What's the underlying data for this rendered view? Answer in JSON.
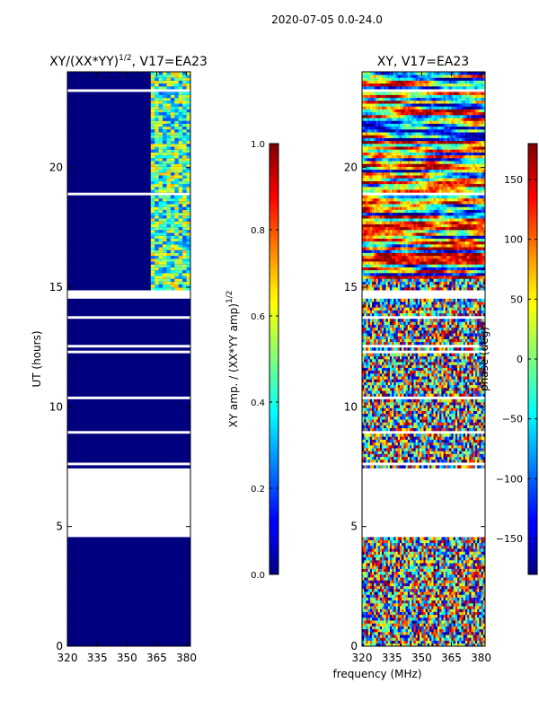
{
  "figure_title": "2020-07-05 0.0-24.0",
  "shared_xlabel": "frequency (MHz)",
  "chart_data": [
    {
      "type": "heatmap",
      "title_main": "XY/(XX*YY)",
      "title_sup": "1/2",
      "title_tail": ", V17=EA23",
      "xlabel": "",
      "ylabel": "UT (hours)",
      "xlim": [
        320,
        382
      ],
      "ylim": [
        0,
        24
      ],
      "xticks": [
        {
          "value": 320,
          "label": "320"
        },
        {
          "value": 335,
          "label": "335"
        },
        {
          "value": 350,
          "label": "350"
        },
        {
          "value": 365,
          "label": "365"
        },
        {
          "value": 380,
          "label": "380"
        }
      ],
      "yticks": [
        {
          "value": 0,
          "label": "0"
        },
        {
          "value": 5,
          "label": "5"
        },
        {
          "value": 10,
          "label": "10"
        },
        {
          "value": 15,
          "label": "15"
        },
        {
          "value": 20,
          "label": "20"
        }
      ],
      "colormap": "jet",
      "colorbar": {
        "label_main": "XY amp. / (XX*YY amp)",
        "label_sup": "1/2",
        "range": [
          0.0,
          1.0
        ],
        "ticks": [
          {
            "value": 0.0,
            "label": "0.0"
          },
          {
            "value": 0.2,
            "label": "0.2"
          },
          {
            "value": 0.4,
            "label": "0.4"
          },
          {
            "value": 0.6,
            "label": "0.6"
          },
          {
            "value": 0.8,
            "label": "0.8"
          },
          {
            "value": 1.0,
            "label": "1.0"
          }
        ]
      },
      "data_ranges_hours": [
        [
          0.0,
          4.6
        ],
        [
          7.4,
          14.5
        ],
        [
          14.9,
          23.95
        ]
      ],
      "signal_band_mhz": [
        362,
        382
      ],
      "signal_start_hour": 14.8
    },
    {
      "type": "heatmap",
      "title": "XY, V17=EA23",
      "xlabel": "",
      "ylabel": "",
      "xlim": [
        320,
        382
      ],
      "ylim": [
        0,
        24
      ],
      "xticks": [
        {
          "value": 320,
          "label": "320"
        },
        {
          "value": 335,
          "label": "335"
        },
        {
          "value": 350,
          "label": "350"
        },
        {
          "value": 365,
          "label": "365"
        },
        {
          "value": 380,
          "label": "380"
        }
      ],
      "yticks": [
        {
          "value": 0,
          "label": "0"
        },
        {
          "value": 5,
          "label": "5"
        },
        {
          "value": 10,
          "label": "10"
        },
        {
          "value": 15,
          "label": "15"
        },
        {
          "value": 20,
          "label": "20"
        }
      ],
      "colormap": "jet",
      "colorbar": {
        "label": "phase (deg)",
        "range": [
          -180,
          180
        ],
        "ticks": [
          {
            "value": -150,
            "label": "−150"
          },
          {
            "value": -100,
            "label": "−100"
          },
          {
            "value": -50,
            "label": "−50"
          },
          {
            "value": 0,
            "label": "0"
          },
          {
            "value": 50,
            "label": "50"
          },
          {
            "value": 100,
            "label": "100"
          },
          {
            "value": 150,
            "label": "150"
          }
        ]
      },
      "data_ranges_hours": [
        [
          0.0,
          4.6
        ],
        [
          7.4,
          14.5
        ],
        [
          14.9,
          23.95
        ]
      ],
      "coherent_start_hour": 15.3
    }
  ]
}
